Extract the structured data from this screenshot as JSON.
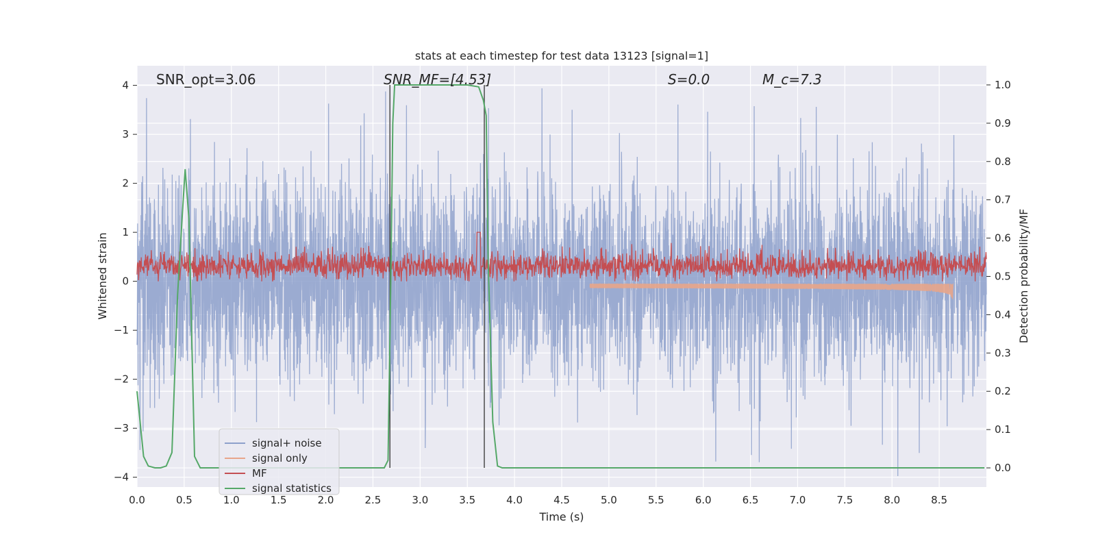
{
  "chart_data": {
    "type": "line",
    "title": "stats at each timestep for test data 13123 [signal=1]",
    "xlabel": "Time (s)",
    "ylabel": "Whitened strain",
    "ylabel_right": "Detection probability/MF",
    "xlim": [
      0.0,
      9.0
    ],
    "ylim": [
      -4.2,
      4.4
    ],
    "ylim_right": [
      -0.05,
      1.05
    ],
    "x_ticks": [
      "0.0",
      "0.5",
      "1.0",
      "1.5",
      "2.0",
      "2.5",
      "3.0",
      "3.5",
      "4.0",
      "4.5",
      "5.0",
      "5.5",
      "6.0",
      "6.5",
      "7.0",
      "7.5",
      "8.0",
      "8.5"
    ],
    "y_ticks": [
      "−4",
      "−3",
      "−2",
      "−1",
      "0",
      "1",
      "2",
      "3",
      "4"
    ],
    "y_right_ticks": [
      "0.0",
      "0.1",
      "0.2",
      "0.3",
      "0.4",
      "0.5",
      "0.6",
      "0.7",
      "0.8",
      "0.9",
      "1.0"
    ],
    "grid": true,
    "legend_position": "lower-left",
    "annotations": {
      "snr_opt": "SNR_opt=3.06",
      "snr_mf": "SNR_MF=[4.53]",
      "s_value": "S=0.0",
      "mc_value": "M_c=7.3"
    },
    "vertical_lines_s": [
      2.68,
      3.68
    ],
    "series": [
      {
        "name": "signal+ noise",
        "color": "#8da0cb",
        "axis": "left",
        "description": "whitened noisy strain, approx. gaussian with std ~1, spikes to ~4"
      },
      {
        "name": "signal only",
        "color": "#e8a58a",
        "axis": "left",
        "chirp": {
          "t_start": 4.8,
          "t_merger": 8.65,
          "amp_start": 0.02,
          "amp_merger": 0.4
        }
      },
      {
        "name": "MF",
        "color": "#c44e52",
        "axis": "left",
        "description": "matched filter output, mean ~0.3, range 0.0–1.0"
      },
      {
        "name": "signal statistics",
        "color": "#55a868",
        "axis": "right",
        "x": [
          0.0,
          0.07,
          0.12,
          0.19,
          0.25,
          0.31,
          0.37,
          0.43,
          0.48,
          0.51,
          0.55,
          0.61,
          0.67,
          0.75,
          0.85,
          1.0,
          1.5,
          2.0,
          2.5,
          2.62,
          2.66,
          2.69,
          2.71,
          2.73,
          2.76,
          2.85,
          3.0,
          3.5,
          3.62,
          3.67,
          3.7,
          3.72,
          3.77,
          3.82,
          3.87,
          3.92,
          4.0,
          4.5,
          5.0,
          5.5,
          6.0,
          6.5,
          7.0,
          7.5,
          8.0,
          8.5,
          8.98
        ],
        "values": [
          0.2,
          0.03,
          0.005,
          0.0,
          0.0,
          0.005,
          0.04,
          0.45,
          0.66,
          0.78,
          0.65,
          0.03,
          0.0,
          0.0,
          0.0,
          0.0,
          0.0,
          0.0,
          0.0,
          0.0,
          0.02,
          0.5,
          0.9,
          1.0,
          1.0,
          1.0,
          1.0,
          1.0,
          0.995,
          0.96,
          0.92,
          0.55,
          0.12,
          0.005,
          0.0,
          0.0,
          0.0,
          0.0,
          0.0,
          0.0,
          0.0,
          0.0,
          0.0,
          0.0,
          0.0,
          0.0,
          0.0
        ]
      }
    ]
  },
  "legend": [
    {
      "label": "signal+ noise",
      "color": "#8da0cb"
    },
    {
      "label": "signal only",
      "color": "#e8a58a"
    },
    {
      "label": "MF",
      "color": "#c44e52"
    },
    {
      "label": "signal statistics",
      "color": "#55a868"
    }
  ]
}
